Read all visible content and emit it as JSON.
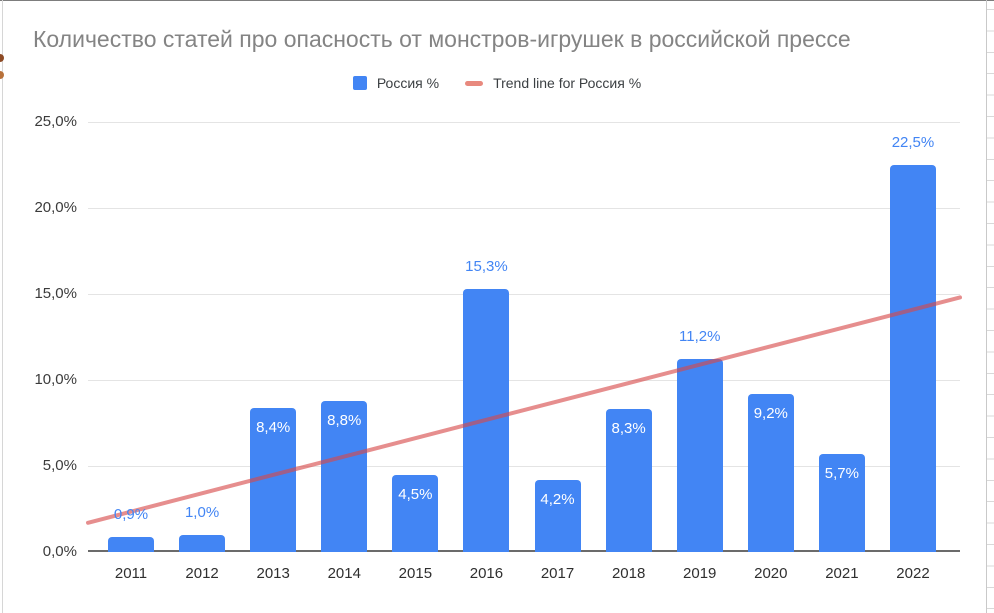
{
  "title": "Количество статей про опасность от монстров-игрушек в российской прессе",
  "legend": [
    {
      "label": "Россия %",
      "swatch": "square",
      "color": "#4285F4"
    },
    {
      "label": "Trend line for Россия %",
      "swatch": "line",
      "color": "#E8897E"
    }
  ],
  "chart_data": {
    "type": "bar",
    "title": "Количество статей про опасность от монстров-игрушек в российской прессе",
    "categories": [
      "2011",
      "2012",
      "2013",
      "2014",
      "2015",
      "2016",
      "2017",
      "2018",
      "2019",
      "2020",
      "2021",
      "2022"
    ],
    "series": [
      {
        "name": "Россия %",
        "values": [
          0.9,
          1.0,
          8.4,
          8.8,
          4.5,
          15.3,
          4.2,
          8.3,
          11.2,
          9.2,
          5.7,
          22.5
        ]
      }
    ],
    "value_labels": [
      "0,9%",
      "1,0%",
      "8,4%",
      "8,8%",
      "4,5%",
      "15,3%",
      "4,2%",
      "8,3%",
      "11,2%",
      "9,2%",
      "5,7%",
      "22,5%"
    ],
    "label_placement": [
      "above",
      "above",
      "inside",
      "inside",
      "inside",
      "above",
      "inside",
      "inside",
      "above",
      "inside",
      "inside",
      "above"
    ],
    "xlabel": "",
    "ylabel": "",
    "ylim": [
      0,
      25
    ],
    "ytick_step": 5,
    "ytick_labels": [
      "0,0%",
      "5,0%",
      "10,0%",
      "15,0%",
      "20,0%",
      "25,0%"
    ],
    "grid": true,
    "legend_position": "top",
    "colors": {
      "bar": "#4285F4",
      "label_above": "#4285F4",
      "label_inside": "#ffffff",
      "gridline": "#e4e4e4",
      "axis_line": "#6b6b6b",
      "trend_stroke": "#D64848",
      "trend_opacity": 0.62
    },
    "trend": {
      "name": "Trend line for Россия %",
      "start_pct": 1.7,
      "end_pct": 14.8
    }
  }
}
